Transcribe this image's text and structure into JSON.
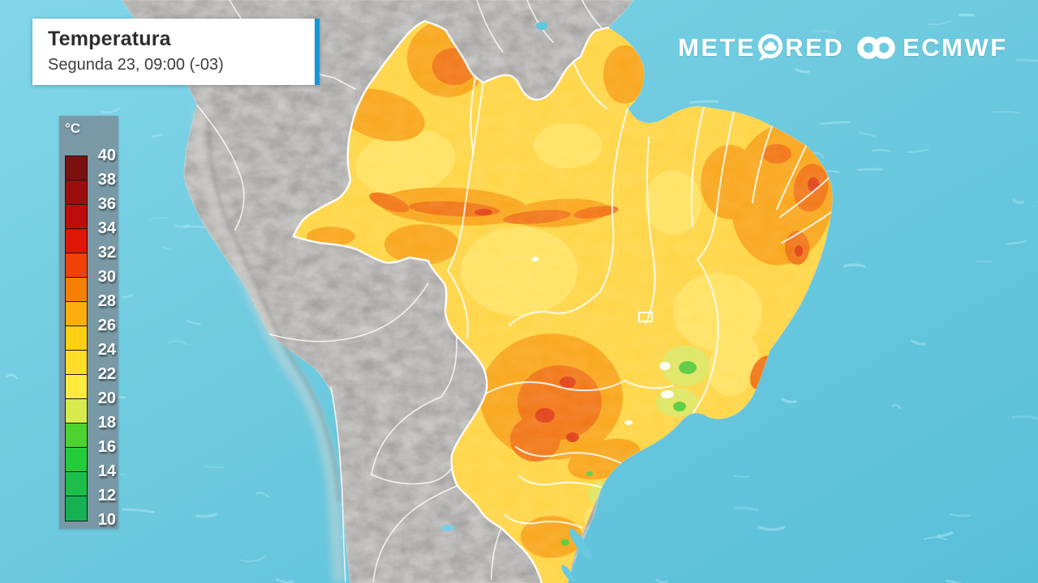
{
  "header": {
    "title": "Temperatura",
    "subtitle": "Segunda 23, 09:00 (-03)"
  },
  "branding": {
    "meteored_prefix": "METE",
    "meteored_suffix": "RED",
    "partner": "ECMWF"
  },
  "legend": {
    "unit": "°C",
    "ticks": [
      "40",
      "38",
      "36",
      "34",
      "32",
      "30",
      "28",
      "26",
      "24",
      "22",
      "20",
      "18",
      "16",
      "14",
      "12",
      "10"
    ],
    "band_colors": [
      "#7A1010",
      "#9C0D0D",
      "#BE0D09",
      "#DF1505",
      "#F04206",
      "#F67F05",
      "#FBAE0C",
      "#FFCF15",
      "#FFDE29",
      "#FFEB3D",
      "#D7EB4F",
      "#4CD32F",
      "#24CC3C",
      "#1DBF4A",
      "#17B154"
    ]
  },
  "theme": {
    "accent_blue": "#1796D6",
    "ocean_light": "#80D5E8",
    "ocean_deep": "#5FC3DC",
    "land_gray": "#BCBAB7",
    "brazil_base_yellow": "#FFD648",
    "border_white": "#FFFFFF",
    "panel_slate": "#7894A0"
  }
}
